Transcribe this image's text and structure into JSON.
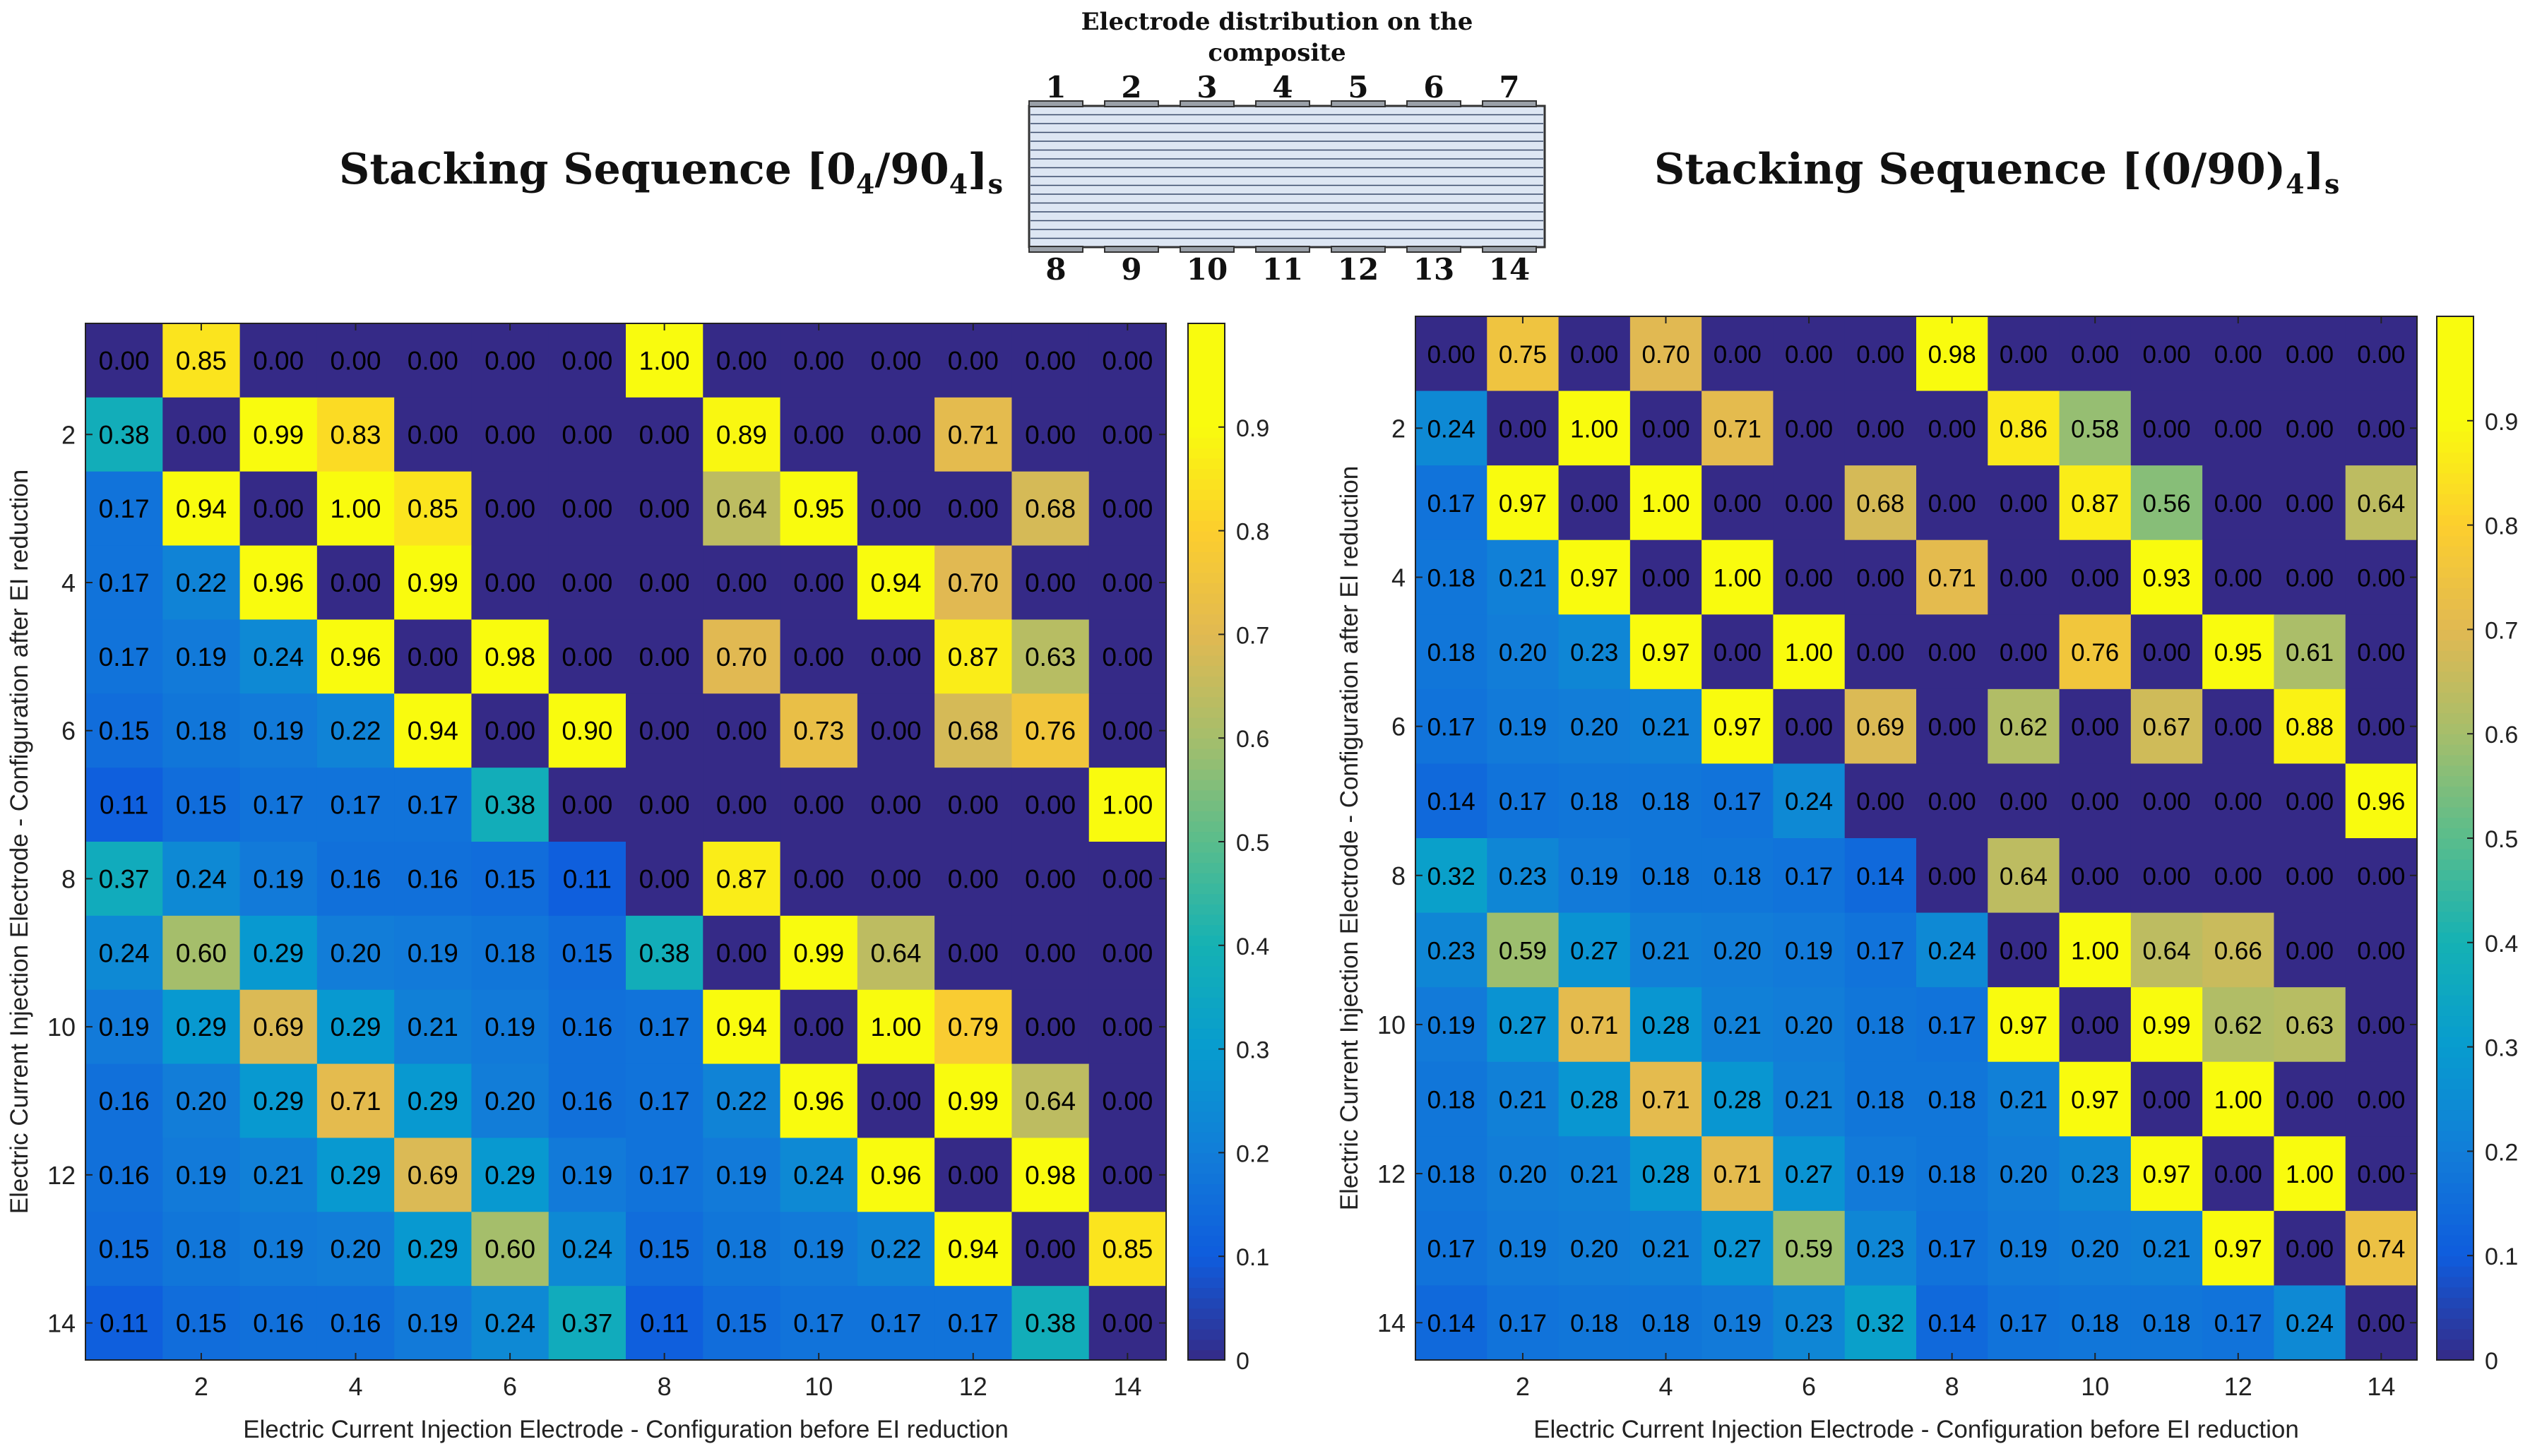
{
  "diagram": {
    "title_line1": "Electrode distribution on the",
    "title_line2": "composite",
    "top_electrodes": [
      "1",
      "2",
      "3",
      "4",
      "5",
      "6",
      "7"
    ],
    "bottom_electrodes": [
      "8",
      "9",
      "10",
      "11",
      "12",
      "13",
      "14"
    ]
  },
  "chart_data": [
    {
      "type": "heatmap",
      "title_prefix": "Stacking Sequence [0",
      "title_sub1": "4",
      "title_mid": "/90",
      "title_sub2": "4",
      "title_close": "]",
      "title_sub3": "s",
      "xlabel": "Electric Current Injection Electrode - Configuration before EI reduction",
      "ylabel": "Electric Current Injection Electrode - Configuration after EI reduction",
      "xticks": [
        "2",
        "4",
        "6",
        "8",
        "10",
        "12",
        "14"
      ],
      "yticks": [
        "2",
        "4",
        "6",
        "8",
        "10",
        "12",
        "14"
      ],
      "colorbar_ticks": [
        "0",
        "0.1",
        "0.2",
        "0.3",
        "0.4",
        "0.5",
        "0.6",
        "0.7",
        "0.8",
        "0.9"
      ],
      "clim": [
        0,
        1
      ],
      "values": [
        [
          0.0,
          0.85,
          0.0,
          0.0,
          0.0,
          0.0,
          0.0,
          1.0,
          0.0,
          0.0,
          0.0,
          0.0,
          0.0,
          0.0
        ],
        [
          0.38,
          0.0,
          0.99,
          0.83,
          0.0,
          0.0,
          0.0,
          0.0,
          0.89,
          0.0,
          0.0,
          0.71,
          0.0,
          0.0
        ],
        [
          0.17,
          0.94,
          0.0,
          1.0,
          0.85,
          0.0,
          0.0,
          0.0,
          0.64,
          0.95,
          0.0,
          0.0,
          0.68,
          0.0
        ],
        [
          0.17,
          0.22,
          0.96,
          0.0,
          0.99,
          0.0,
          0.0,
          0.0,
          0.0,
          0.0,
          0.94,
          0.7,
          0.0,
          0.0
        ],
        [
          0.17,
          0.19,
          0.24,
          0.96,
          0.0,
          0.98,
          0.0,
          0.0,
          0.7,
          0.0,
          0.0,
          0.87,
          0.63,
          0.0
        ],
        [
          0.15,
          0.18,
          0.19,
          0.22,
          0.94,
          0.0,
          0.9,
          0.0,
          0.0,
          0.73,
          0.0,
          0.68,
          0.76,
          0.0
        ],
        [
          0.11,
          0.15,
          0.17,
          0.17,
          0.17,
          0.38,
          0.0,
          0.0,
          0.0,
          0.0,
          0.0,
          0.0,
          0.0,
          1.0
        ],
        [
          0.37,
          0.24,
          0.19,
          0.16,
          0.16,
          0.15,
          0.11,
          0.0,
          0.87,
          0.0,
          0.0,
          0.0,
          0.0,
          0.0
        ],
        [
          0.24,
          0.6,
          0.29,
          0.2,
          0.19,
          0.18,
          0.15,
          0.38,
          0.0,
          0.99,
          0.64,
          0.0,
          0.0,
          0.0
        ],
        [
          0.19,
          0.29,
          0.69,
          0.29,
          0.21,
          0.19,
          0.16,
          0.17,
          0.94,
          0.0,
          1.0,
          0.79,
          0.0,
          0.0
        ],
        [
          0.16,
          0.2,
          0.29,
          0.71,
          0.29,
          0.2,
          0.16,
          0.17,
          0.22,
          0.96,
          0.0,
          0.99,
          0.64,
          0.0
        ],
        [
          0.16,
          0.19,
          0.21,
          0.29,
          0.69,
          0.29,
          0.19,
          0.17,
          0.19,
          0.24,
          0.96,
          0.0,
          0.98,
          0.0
        ],
        [
          0.15,
          0.18,
          0.19,
          0.2,
          0.29,
          0.6,
          0.24,
          0.15,
          0.18,
          0.19,
          0.22,
          0.94,
          0.0,
          0.85
        ],
        [
          0.11,
          0.15,
          0.16,
          0.16,
          0.19,
          0.24,
          0.37,
          0.11,
          0.15,
          0.17,
          0.17,
          0.17,
          0.38,
          0.0
        ]
      ]
    },
    {
      "type": "heatmap",
      "title_prefix": "Stacking Sequence [(0/90)",
      "title_sub1": "4",
      "title_mid": "",
      "title_sub2": "",
      "title_close": "]",
      "title_sub3": "s",
      "xlabel": "Electric Current Injection Electrode - Configuration before EI reduction",
      "ylabel": "Electric Current Injection Electrode - Configuration after EI reduction",
      "xticks": [
        "2",
        "4",
        "6",
        "8",
        "10",
        "12",
        "14"
      ],
      "yticks": [
        "2",
        "4",
        "6",
        "8",
        "10",
        "12",
        "14"
      ],
      "colorbar_ticks": [
        "0",
        "0.1",
        "0.2",
        "0.3",
        "0.4",
        "0.5",
        "0.6",
        "0.7",
        "0.8",
        "0.9"
      ],
      "clim": [
        0,
        1
      ],
      "values": [
        [
          0.0,
          0.75,
          0.0,
          0.7,
          0.0,
          0.0,
          0.0,
          0.98,
          0.0,
          0.0,
          0.0,
          0.0,
          0.0,
          0.0
        ],
        [
          0.24,
          0.0,
          1.0,
          0.0,
          0.71,
          0.0,
          0.0,
          0.0,
          0.86,
          0.58,
          0.0,
          0.0,
          0.0,
          0.0
        ],
        [
          0.17,
          0.97,
          0.0,
          1.0,
          0.0,
          0.0,
          0.68,
          0.0,
          0.0,
          0.87,
          0.56,
          0.0,
          0.0,
          0.64
        ],
        [
          0.18,
          0.21,
          0.97,
          0.0,
          1.0,
          0.0,
          0.0,
          0.71,
          0.0,
          0.0,
          0.93,
          0.0,
          0.0,
          0.0
        ],
        [
          0.18,
          0.2,
          0.23,
          0.97,
          0.0,
          1.0,
          0.0,
          0.0,
          0.0,
          0.76,
          0.0,
          0.95,
          0.61,
          0.0
        ],
        [
          0.17,
          0.19,
          0.2,
          0.21,
          0.97,
          0.0,
          0.69,
          0.0,
          0.62,
          0.0,
          0.67,
          0.0,
          0.88,
          0.0
        ],
        [
          0.14,
          0.17,
          0.18,
          0.18,
          0.17,
          0.24,
          0.0,
          0.0,
          0.0,
          0.0,
          0.0,
          0.0,
          0.0,
          0.96
        ],
        [
          0.32,
          0.23,
          0.19,
          0.18,
          0.18,
          0.17,
          0.14,
          0.0,
          0.64,
          0.0,
          0.0,
          0.0,
          0.0,
          0.0
        ],
        [
          0.23,
          0.59,
          0.27,
          0.21,
          0.2,
          0.19,
          0.17,
          0.24,
          0.0,
          1.0,
          0.64,
          0.66,
          0.0,
          0.0
        ],
        [
          0.19,
          0.27,
          0.71,
          0.28,
          0.21,
          0.2,
          0.18,
          0.17,
          0.97,
          0.0,
          0.99,
          0.62,
          0.63,
          0.0
        ],
        [
          0.18,
          0.21,
          0.28,
          0.71,
          0.28,
          0.21,
          0.18,
          0.18,
          0.21,
          0.97,
          0.0,
          1.0,
          0.0,
          0.0
        ],
        [
          0.18,
          0.2,
          0.21,
          0.28,
          0.71,
          0.27,
          0.19,
          0.18,
          0.2,
          0.23,
          0.97,
          0.0,
          1.0,
          0.0
        ],
        [
          0.17,
          0.19,
          0.2,
          0.21,
          0.27,
          0.59,
          0.23,
          0.17,
          0.19,
          0.2,
          0.21,
          0.97,
          0.0,
          0.74
        ],
        [
          0.14,
          0.17,
          0.18,
          0.18,
          0.19,
          0.23,
          0.32,
          0.14,
          0.17,
          0.18,
          0.18,
          0.17,
          0.24,
          0.0
        ]
      ]
    }
  ]
}
